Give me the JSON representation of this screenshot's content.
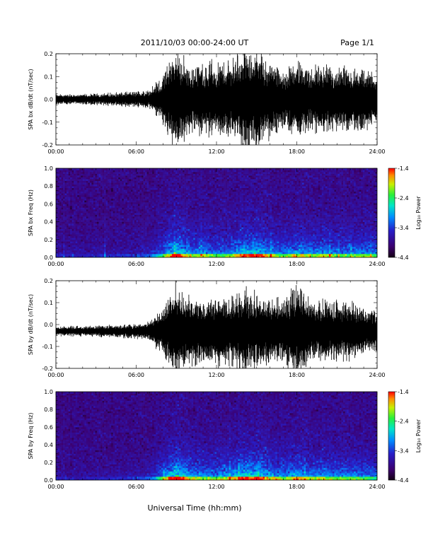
{
  "header": {
    "date_range": "2011/10/03  00:00-24:00 UT",
    "page": "Page 1/1"
  },
  "footer": {
    "xlabel": "Universal Time (hh:mm)"
  },
  "chart_data": [
    {
      "type": "line",
      "ylabel": "SPA bx dB/dt (nT/sec)",
      "xlabel": "",
      "xlim": [
        "00:00",
        "24:00"
      ],
      "ylim": [
        -0.2,
        0.2
      ],
      "x_ticks": [
        "00:00",
        "06:00",
        "12:00",
        "18:00",
        "24:00"
      ],
      "y_ticks": [
        "-0.2",
        "-0.1",
        "0.0",
        "0.1",
        "0.2"
      ],
      "baseline": 0.0,
      "envelope": {
        "hours": [
          0,
          2,
          4,
          6,
          7,
          8,
          8.5,
          9,
          10,
          11,
          12,
          13,
          14,
          15,
          16,
          17,
          18,
          19,
          20,
          21,
          22,
          23,
          24
        ],
        "amplitude": [
          0.02,
          0.02,
          0.025,
          0.03,
          0.04,
          0.09,
          0.16,
          0.2,
          0.13,
          0.15,
          0.14,
          0.15,
          0.2,
          0.2,
          0.15,
          0.11,
          0.16,
          0.12,
          0.14,
          0.12,
          0.12,
          0.12,
          0.1
        ]
      }
    },
    {
      "type": "heatmap",
      "ylabel": "SPA bx Freq (Hz)",
      "xlim": [
        "00:00",
        "24:00"
      ],
      "ylim": [
        0.0,
        1.0
      ],
      "x_ticks": [
        "00:00",
        "06:00",
        "12:00",
        "18:00",
        "24:00"
      ],
      "y_ticks": [
        "0.0",
        "0.2",
        "0.4",
        "0.6",
        "0.8",
        "1.0"
      ],
      "colorbar": {
        "label": "Log₁₀ Power",
        "ticks": [
          "-1.4",
          "-2.4",
          "-3.4",
          "-4.4"
        ],
        "range": [
          -4.4,
          -1.4
        ]
      },
      "activity": {
        "hours": [
          0,
          2,
          4,
          6,
          7,
          8,
          8.5,
          9,
          10,
          11,
          12,
          13,
          14,
          15,
          16,
          17,
          18,
          19,
          20,
          21,
          22,
          23,
          24
        ],
        "level": [
          0.1,
          0.1,
          0.12,
          0.15,
          0.2,
          0.45,
          0.7,
          0.85,
          0.6,
          0.55,
          0.5,
          0.55,
          0.75,
          0.8,
          0.6,
          0.5,
          0.65,
          0.55,
          0.6,
          0.5,
          0.5,
          0.55,
          0.45
        ]
      }
    },
    {
      "type": "line",
      "ylabel": "SPA by dB/dt (nT/sec)",
      "xlabel": "",
      "xlim": [
        "00:00",
        "24:00"
      ],
      "ylim": [
        -0.2,
        0.2
      ],
      "x_ticks": [
        "00:00",
        "06:00",
        "12:00",
        "18:00",
        "24:00"
      ],
      "y_ticks": [
        "-0.2",
        "-0.1",
        "0.0",
        "0.1",
        "0.2"
      ],
      "baseline": -0.03,
      "envelope": {
        "hours": [
          0,
          2,
          4,
          6,
          7,
          8,
          8.5,
          9,
          10,
          11,
          12,
          13,
          14,
          15,
          16,
          17,
          18,
          19,
          20,
          21,
          22,
          23,
          24
        ],
        "amplitude": [
          0.02,
          0.02,
          0.025,
          0.03,
          0.04,
          0.1,
          0.14,
          0.2,
          0.13,
          0.14,
          0.14,
          0.14,
          0.17,
          0.15,
          0.14,
          0.12,
          0.2,
          0.12,
          0.13,
          0.12,
          0.12,
          0.1,
          0.08
        ]
      }
    },
    {
      "type": "heatmap",
      "ylabel": "SPA by Freq (Hz)",
      "xlim": [
        "00:00",
        "24:00"
      ],
      "ylim": [
        0.0,
        1.0
      ],
      "x_ticks": [
        "00:00",
        "06:00",
        "12:00",
        "18:00",
        "24:00"
      ],
      "y_ticks": [
        "0.0",
        "0.2",
        "0.4",
        "0.6",
        "0.8",
        "1.0"
      ],
      "colorbar": {
        "label": "Log₁₀ Power",
        "ticks": [
          "-1.4",
          "-2.4",
          "-3.4",
          "-4.4"
        ],
        "range": [
          -4.4,
          -1.4
        ]
      },
      "activity": {
        "hours": [
          0,
          2,
          4,
          6,
          7,
          8,
          8.5,
          9,
          10,
          11,
          12,
          13,
          14,
          15,
          16,
          17,
          18,
          19,
          20,
          21,
          22,
          23,
          24
        ],
        "level": [
          0.1,
          0.1,
          0.12,
          0.15,
          0.2,
          0.5,
          0.75,
          0.9,
          0.65,
          0.55,
          0.55,
          0.6,
          0.8,
          0.8,
          0.65,
          0.55,
          0.7,
          0.55,
          0.6,
          0.55,
          0.55,
          0.5,
          0.45
        ]
      }
    }
  ]
}
